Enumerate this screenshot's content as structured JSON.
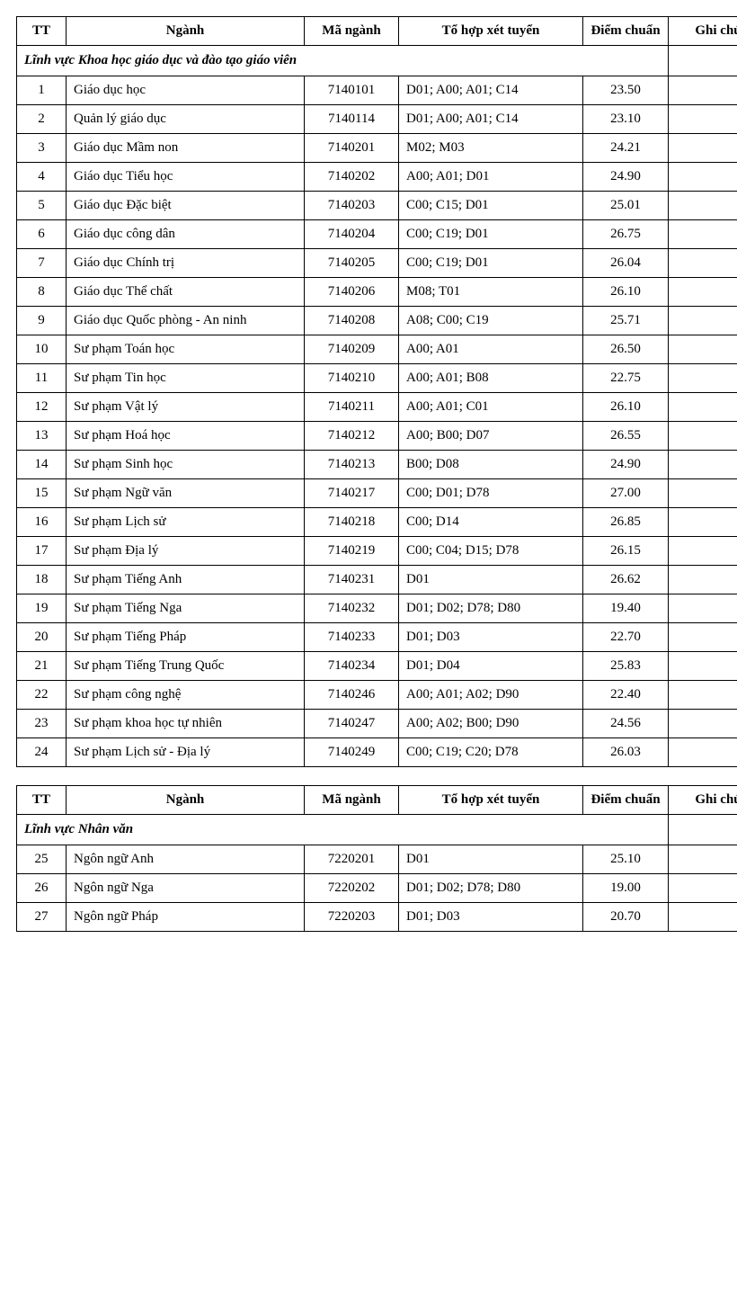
{
  "headers": {
    "tt": "TT",
    "name": "Ngành",
    "code": "Mã ngành",
    "combo": "Tổ hợp xét tuyển",
    "score": "Điểm chuẩn",
    "note": "Ghi chú"
  },
  "tables": [
    {
      "section": "Lĩnh vực Khoa học giáo dục và đào tạo giáo viên",
      "rows": [
        {
          "tt": "1",
          "name": "Giáo dục học",
          "code": "7140101",
          "combo": "D01; A00; A01; C14",
          "score": "23.50",
          "note": ""
        },
        {
          "tt": "2",
          "name": "Quản lý giáo dục",
          "code": "7140114",
          "combo": "D01; A00; A01; C14",
          "score": "23.10",
          "note": ""
        },
        {
          "tt": "3",
          "name": "Giáo dục Mầm non",
          "code": "7140201",
          "combo": "M02; M03",
          "score": "24.21",
          "note": ""
        },
        {
          "tt": "4",
          "name": "Giáo dục Tiểu học",
          "code": "7140202",
          "combo": "A00; A01; D01",
          "score": "24.90",
          "note": ""
        },
        {
          "tt": "5",
          "name": "Giáo dục Đặc biệt",
          "code": "7140203",
          "combo": "C00; C15; D01",
          "score": "25.01",
          "note": ""
        },
        {
          "tt": "6",
          "name": "Giáo dục công dân",
          "code": "7140204",
          "combo": "C00; C19; D01",
          "score": "26.75",
          "note": ""
        },
        {
          "tt": "7",
          "name": "Giáo dục Chính trị",
          "code": "7140205",
          "combo": "C00; C19; D01",
          "score": "26.04",
          "note": ""
        },
        {
          "tt": "8",
          "name": "Giáo dục Thể chất",
          "code": "7140206",
          "combo": "M08; T01",
          "score": "26.10",
          "note": ""
        },
        {
          "tt": "9",
          "name": "Giáo dục Quốc phòng - An ninh",
          "code": "7140208",
          "combo": "A08; C00; C19",
          "score": "25.71",
          "note": ""
        },
        {
          "tt": "10",
          "name": "Sư phạm Toán học",
          "code": "7140209",
          "combo": "A00; A01",
          "score": "26.50",
          "note": ""
        },
        {
          "tt": "11",
          "name": "Sư phạm Tin học",
          "code": "7140210",
          "combo": "A00; A01; B08",
          "score": "22.75",
          "note": ""
        },
        {
          "tt": "12",
          "name": "Sư phạm Vật lý",
          "code": "7140211",
          "combo": "A00; A01; C01",
          "score": "26.10",
          "note": ""
        },
        {
          "tt": "13",
          "name": "Sư phạm Hoá học",
          "code": "7140212",
          "combo": "A00; B00; D07",
          "score": "26.55",
          "note": ""
        },
        {
          "tt": "14",
          "name": "Sư phạm Sinh học",
          "code": "7140213",
          "combo": "B00; D08",
          "score": "24.90",
          "note": ""
        },
        {
          "tt": "15",
          "name": "Sư phạm Ngữ văn",
          "code": "7140217",
          "combo": "C00; D01; D78",
          "score": "27.00",
          "note": ""
        },
        {
          "tt": "16",
          "name": "Sư phạm Lịch sử",
          "code": "7140218",
          "combo": "C00; D14",
          "score": "26.85",
          "note": ""
        },
        {
          "tt": "17",
          "name": "Sư phạm Địa lý",
          "code": "7140219",
          "combo": "C00; C04; D15; D78",
          "score": "26.15",
          "note": ""
        },
        {
          "tt": "18",
          "name": "Sư phạm Tiếng Anh",
          "code": "7140231",
          "combo": "D01",
          "score": "26.62",
          "note": ""
        },
        {
          "tt": "19",
          "name": "Sư phạm Tiếng Nga",
          "code": "7140232",
          "combo": "D01; D02; D78; D80",
          "score": "19.40",
          "note": ""
        },
        {
          "tt": "20",
          "name": "Sư phạm Tiếng Pháp",
          "code": "7140233",
          "combo": "D01; D03",
          "score": "22.70",
          "note": ""
        },
        {
          "tt": "21",
          "name": "Sư phạm Tiếng Trung Quốc",
          "code": "7140234",
          "combo": "D01; D04",
          "score": "25.83",
          "note": ""
        },
        {
          "tt": "22",
          "name": "Sư phạm công nghệ",
          "code": "7140246",
          "combo": "A00; A01; A02; D90",
          "score": "22.40",
          "note": ""
        },
        {
          "tt": "23",
          "name": "Sư phạm khoa học tự nhiên",
          "code": "7140247",
          "combo": "A00; A02; B00; D90",
          "score": "24.56",
          "note": ""
        },
        {
          "tt": "24",
          "name": "Sư phạm Lịch sử - Địa lý",
          "code": "7140249",
          "combo": "C00; C19; C20; D78",
          "score": "26.03",
          "note": ""
        }
      ]
    },
    {
      "section": "Lĩnh vực Nhân văn",
      "rows": [
        {
          "tt": "25",
          "name": "Ngôn ngữ Anh",
          "code": "7220201",
          "combo": "D01",
          "score": "25.10",
          "note": ""
        },
        {
          "tt": "26",
          "name": "Ngôn ngữ Nga",
          "code": "7220202",
          "combo": "D01; D02; D78; D80",
          "score": "19.00",
          "note": ""
        },
        {
          "tt": "27",
          "name": "Ngôn ngữ Pháp",
          "code": "7220203",
          "combo": "D01; D03",
          "score": "20.70",
          "note": ""
        }
      ]
    }
  ]
}
